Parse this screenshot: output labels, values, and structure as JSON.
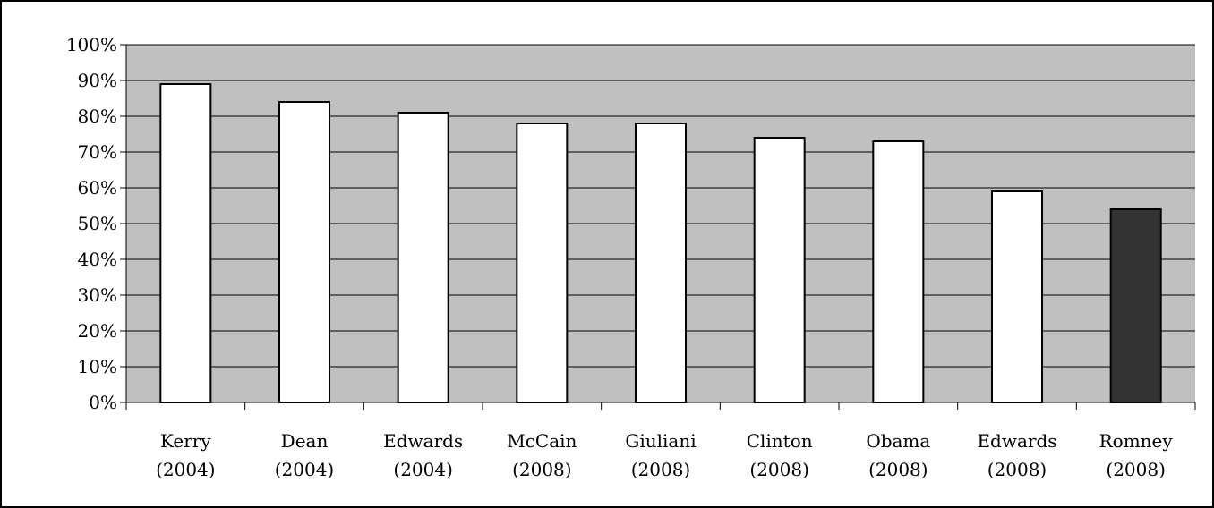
{
  "chart_data": {
    "type": "bar",
    "categories": [
      [
        "Kerry",
        "(2004)"
      ],
      [
        "Dean",
        "(2004)"
      ],
      [
        "Edwards",
        "(2004)"
      ],
      [
        "McCain",
        "(2008)"
      ],
      [
        "Giuliani",
        "(2008)"
      ],
      [
        "Clinton",
        "(2008)"
      ],
      [
        "Obama",
        "(2008)"
      ],
      [
        "Edwards",
        "(2008)"
      ],
      [
        "Romney",
        "(2008)"
      ]
    ],
    "values": [
      89,
      84,
      81,
      78,
      78,
      74,
      73,
      59,
      54
    ],
    "unit": "%",
    "ylim": [
      0,
      100
    ],
    "ytick_step": 10,
    "yticks": [
      "0%",
      "10%",
      "20%",
      "30%",
      "40%",
      "50%",
      "60%",
      "70%",
      "80%",
      "90%",
      "100%"
    ],
    "grid": true,
    "legend": "none",
    "colors": {
      "plot_background": "#c0c0c0",
      "bar_default": "#ffffff",
      "bar_highlight": "#333333",
      "axis": "#000000"
    },
    "highlight_index": 8
  }
}
